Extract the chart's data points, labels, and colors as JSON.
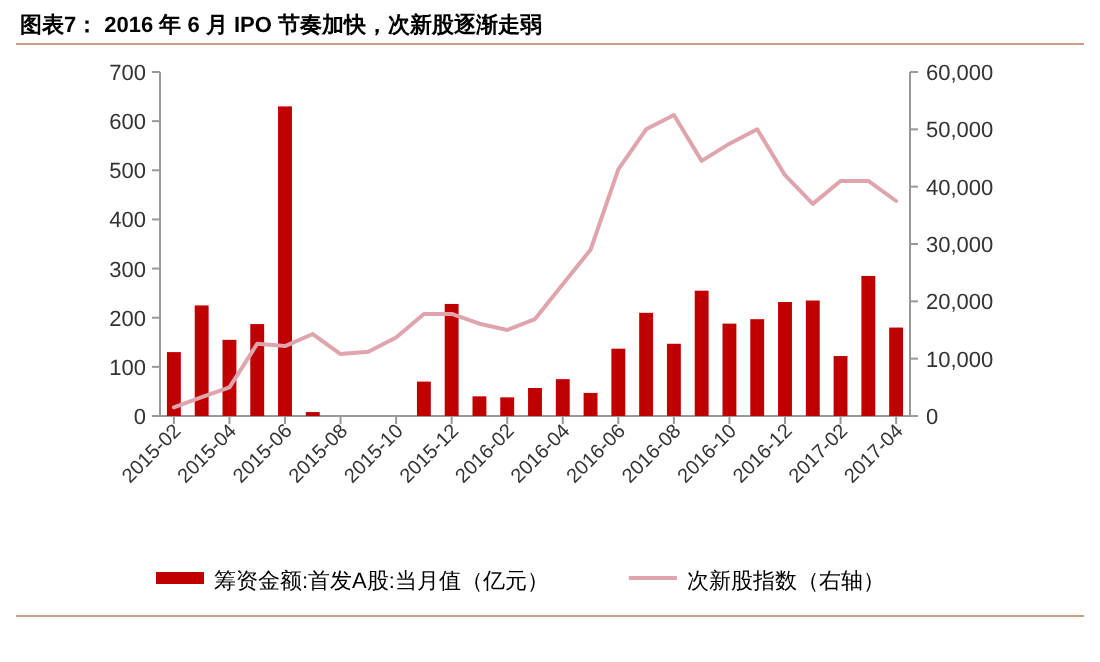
{
  "chart_data": {
    "type": "bar",
    "title": "图表7：  2016 年 6 月 IPO 节奏加快，次新股逐渐走弱",
    "categories": [
      "2015-02",
      null,
      "2015-04",
      null,
      "2015-06",
      null,
      "2015-08",
      null,
      "2015-10",
      null,
      "2015-12",
      null,
      "2016-02",
      null,
      "2016-04",
      null,
      "2016-06",
      null,
      "2016-08",
      null,
      "2016-10",
      null,
      "2016-12",
      null,
      "2017-02",
      null,
      "2017-04"
    ],
    "series": [
      {
        "name": "筹资金额:首发A股:当月值（亿元）",
        "color": "#c00000",
        "values": [
          130,
          225,
          155,
          187,
          630,
          8,
          0,
          0,
          0,
          70,
          228,
          40,
          38,
          57,
          75,
          47,
          137,
          210,
          147,
          255,
          188,
          197,
          232,
          235,
          122,
          285,
          180
        ]
      },
      {
        "name": "次新股指数（右轴）",
        "type": "line",
        "axis": "y2",
        "color": "#e0a4ac",
        "values": [
          1500,
          3300,
          5000,
          12600,
          12200,
          14300,
          10800,
          11200,
          13700,
          17800,
          17800,
          16100,
          15000,
          16900,
          23000,
          29000,
          43000,
          50000,
          52500,
          44500,
          47500,
          50000,
          42000,
          37000,
          41000,
          41000,
          37500
        ]
      }
    ],
    "ylim": [
      0,
      700
    ],
    "yticks": [
      0,
      100,
      200,
      300,
      400,
      500,
      600,
      700
    ],
    "y2lim": [
      0,
      60000
    ],
    "y2ticks": [
      0,
      {
        "value": 10000,
        "label": "10,000"
      },
      {
        "value": 20000,
        "label": "20,000"
      },
      {
        "value": 30000,
        "label": "30,000"
      },
      {
        "value": 40000,
        "label": "40,000"
      },
      {
        "value": 50000,
        "label": "50,000"
      },
      {
        "value": 60000,
        "label": "60,000"
      }
    ],
    "legend": "bottom"
  }
}
